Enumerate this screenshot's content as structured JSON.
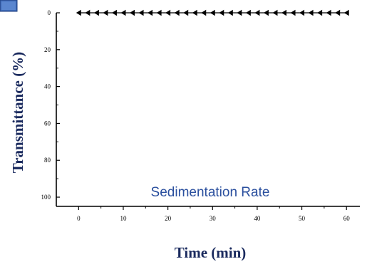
{
  "chart_data": {
    "type": "line",
    "annotation": "Sedimentation Rate",
    "xlabel": "Time (min)",
    "ylabel": "Transmittance (%)",
    "xlim": [
      -5,
      63
    ],
    "ylim": [
      0,
      105
    ],
    "y_inverted": true,
    "grid": false,
    "marker": "left-triangle",
    "xticks": [
      0,
      10,
      20,
      30,
      40,
      50,
      60
    ],
    "yticks": [
      0,
      20,
      40,
      60,
      80,
      100
    ],
    "series": [
      {
        "x": [
          0,
          2,
          4,
          6,
          8,
          10,
          12,
          14,
          16,
          18,
          20,
          22,
          24,
          26,
          28,
          30,
          32,
          34,
          36,
          38,
          40,
          42,
          44,
          46,
          48,
          50,
          52,
          54,
          56,
          58,
          60
        ],
        "values": [
          0,
          0,
          0,
          0,
          0,
          0,
          0,
          0,
          0,
          0,
          0,
          0,
          0,
          0,
          0,
          0,
          0,
          0,
          0,
          0,
          0,
          0,
          0,
          0,
          0,
          0,
          0,
          0,
          0,
          0,
          0
        ]
      }
    ],
    "colors": {
      "series": "#000000",
      "annotation": "#2a4f9e",
      "badge": "#3d68b5"
    }
  }
}
